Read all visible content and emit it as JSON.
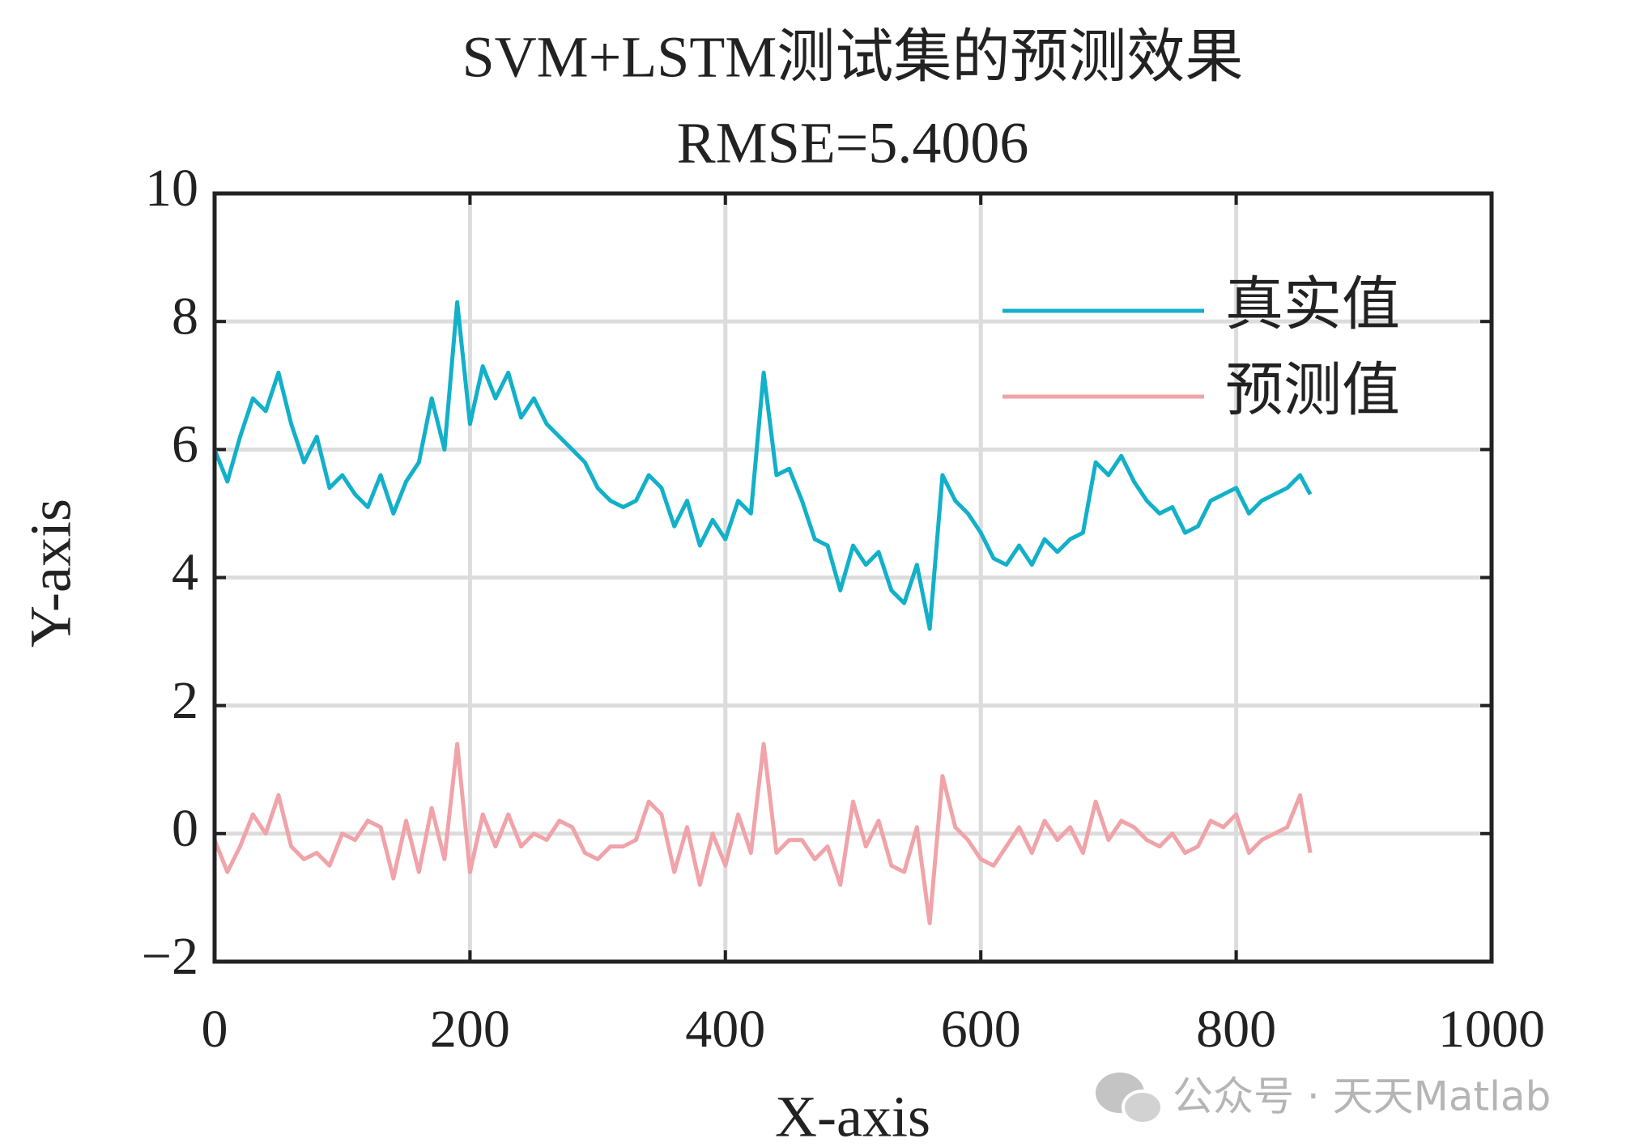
{
  "chart_data": {
    "type": "line",
    "title": "SVM+LSTM测试集的预测效果",
    "subtitle": "RMSE=5.4006",
    "x_label": "X-axis",
    "y_label": "Y-axis",
    "watermark": "公众号 · 天天Matlab",
    "x": [
      0,
      10,
      20,
      30,
      40,
      50,
      60,
      70,
      80,
      90,
      100,
      110,
      120,
      130,
      140,
      150,
      160,
      170,
      180,
      190,
      200,
      210,
      220,
      230,
      240,
      250,
      260,
      270,
      280,
      290,
      300,
      310,
      320,
      330,
      340,
      350,
      360,
      370,
      380,
      390,
      400,
      410,
      420,
      430,
      440,
      450,
      460,
      470,
      480,
      490,
      500,
      510,
      520,
      530,
      540,
      550,
      560,
      570,
      580,
      590,
      600,
      610,
      620,
      630,
      640,
      650,
      660,
      670,
      680,
      690,
      700,
      710,
      720,
      730,
      740,
      750,
      760,
      770,
      780,
      790,
      800,
      810,
      820,
      830,
      840,
      850,
      858
    ],
    "series": [
      {
        "name": "真实值",
        "color": "#12b0c9",
        "values": [
          6.0,
          5.5,
          6.2,
          6.8,
          6.6,
          7.2,
          6.4,
          5.8,
          6.2,
          5.4,
          5.6,
          5.3,
          5.1,
          5.6,
          5.0,
          5.5,
          5.8,
          6.8,
          6.0,
          8.3,
          6.4,
          7.3,
          6.8,
          7.2,
          6.5,
          6.8,
          6.4,
          6.2,
          6.0,
          5.8,
          5.4,
          5.2,
          5.1,
          5.2,
          5.6,
          5.4,
          4.8,
          5.2,
          4.5,
          4.9,
          4.6,
          5.2,
          5.0,
          7.2,
          5.6,
          5.7,
          5.2,
          4.6,
          4.5,
          3.8,
          4.5,
          4.2,
          4.4,
          3.8,
          3.6,
          4.2,
          3.2,
          5.6,
          5.2,
          5.0,
          4.7,
          4.3,
          4.2,
          4.5,
          4.2,
          4.6,
          4.4,
          4.6,
          4.7,
          5.8,
          5.6,
          5.9,
          5.5,
          5.2,
          5.0,
          5.1,
          4.7,
          4.8,
          5.2,
          5.3,
          5.4,
          5.0,
          5.2,
          5.3,
          5.4,
          5.6,
          5.3
        ]
      },
      {
        "name": "预测值",
        "color": "#f0a3a8",
        "values": [
          -0.1,
          -0.6,
          -0.2,
          0.3,
          0.0,
          0.6,
          -0.2,
          -0.4,
          -0.3,
          -0.5,
          0.0,
          -0.1,
          0.2,
          0.1,
          -0.7,
          0.2,
          -0.6,
          0.4,
          -0.4,
          1.4,
          -0.6,
          0.3,
          -0.2,
          0.3,
          -0.2,
          0.0,
          -0.1,
          0.2,
          0.1,
          -0.3,
          -0.4,
          -0.2,
          -0.2,
          -0.1,
          0.5,
          0.3,
          -0.6,
          0.1,
          -0.8,
          0.0,
          -0.5,
          0.3,
          -0.3,
          1.4,
          -0.3,
          -0.1,
          -0.1,
          -0.4,
          -0.2,
          -0.8,
          0.5,
          -0.2,
          0.2,
          -0.5,
          -0.6,
          0.1,
          -1.4,
          0.9,
          0.1,
          -0.1,
          -0.4,
          -0.5,
          -0.2,
          0.1,
          -0.3,
          0.2,
          -0.1,
          0.1,
          -0.3,
          0.5,
          -0.1,
          0.2,
          0.1,
          -0.1,
          -0.2,
          0.0,
          -0.3,
          -0.2,
          0.2,
          0.1,
          0.3,
          -0.3,
          -0.1,
          0.0,
          0.1,
          0.6,
          -0.3
        ]
      }
    ],
    "xlim": [
      0,
      1000
    ],
    "xticks": [
      0,
      200,
      400,
      600,
      800,
      1000
    ],
    "ylim": [
      -2,
      10
    ],
    "yticks": [
      {
        "value": -2,
        "label": "−2"
      },
      0,
      2,
      4,
      6,
      8,
      10
    ],
    "grid": true,
    "legend": "upper right"
  }
}
